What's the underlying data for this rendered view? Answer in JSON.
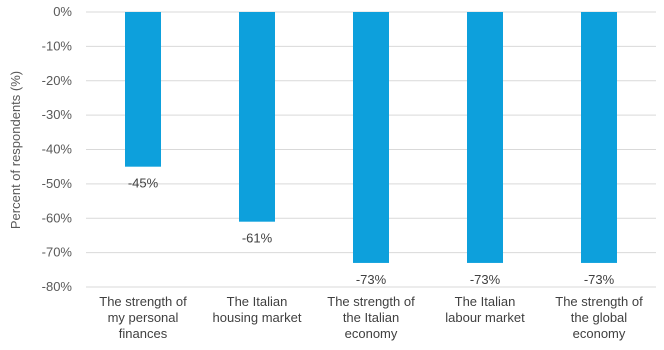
{
  "chart_data": {
    "type": "bar",
    "categories": [
      [
        "The strength of",
        "my personal",
        "finances"
      ],
      [
        "The Italian",
        "housing market"
      ],
      [
        "The strength of",
        "the Italian",
        "economy"
      ],
      [
        "The Italian",
        "labour market"
      ],
      [
        "The strength of",
        "the global",
        "economy"
      ]
    ],
    "values": [
      -45,
      -61,
      -73,
      -73,
      -73
    ],
    "data_labels": [
      "-45%",
      "-61%",
      "-73%",
      "-73%",
      "-73%"
    ],
    "ylabel": "Percent of respondents (%)",
    "ylim": [
      -80,
      0
    ],
    "yticks": [
      0,
      -10,
      -20,
      -30,
      -40,
      -50,
      -60,
      -70,
      -80
    ],
    "ytick_labels": [
      "0%",
      "-10%",
      "-20%",
      "-30%",
      "-40%",
      "-50%",
      "-60%",
      "-70%",
      "-80%"
    ],
    "bar_color": "#0da0dc",
    "grid": true,
    "grid_color": "#d9d9d9",
    "legend": "none"
  }
}
